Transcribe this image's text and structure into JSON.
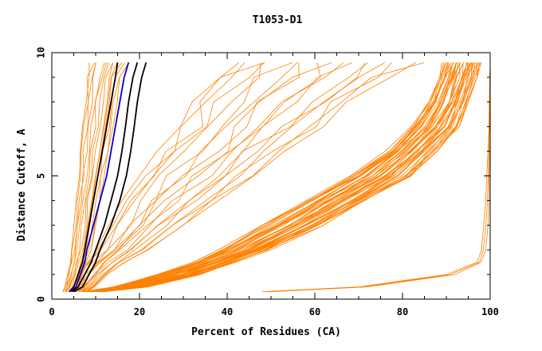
{
  "chart_data": {
    "type": "line",
    "title": "T1053-D1",
    "xlabel": "Percent of Residues (CA)",
    "ylabel": "Distance Cutoff, A",
    "xlim": [
      0,
      100
    ],
    "ylim": [
      0,
      10
    ],
    "x_ticks": [
      0,
      20,
      40,
      60,
      80,
      100
    ],
    "y_ticks": [
      0,
      5,
      10
    ],
    "grid": false,
    "colors": {
      "bulk": "#ff8000",
      "highlight_a": "#000000",
      "highlight_b": "#0000cc",
      "frame": "#000000"
    },
    "y_levels": [
      0.3,
      0.5,
      1,
      1.5,
      2,
      3,
      4,
      5,
      6,
      7,
      8,
      9,
      9.6
    ],
    "bulk_groups": [
      {
        "name": "",
        "count": 14,
        "x_at_levels_min": [
          2.5,
          3,
          3.5,
          4,
          4.5,
          5,
          5.5,
          6,
          6.5,
          7,
          7.5,
          8,
          8.5
        ],
        "x_at_levels_max": [
          5,
          6,
          7,
          8,
          9,
          10,
          11,
          12,
          13,
          14,
          15,
          16,
          18
        ]
      },
      {
        "name": "",
        "count": 18,
        "x_at_levels_min": [
          4,
          5,
          6,
          8,
          10,
          13,
          16,
          20,
          24,
          28,
          32,
          36,
          40
        ],
        "x_at_levels_max": [
          8,
          10,
          13,
          17,
          22,
          30,
          38,
          46,
          54,
          62,
          70,
          78,
          85
        ]
      },
      {
        "name": "",
        "count": 45,
        "x_at_levels_min": [
          7,
          14,
          24,
          32,
          38,
          48,
          58,
          68,
          76,
          82,
          86,
          88,
          89
        ],
        "x_at_levels_max": [
          12,
          22,
          34,
          42,
          50,
          62,
          72,
          82,
          88,
          93,
          95,
          97,
          98
        ]
      },
      {
        "name": "",
        "count": 3,
        "x_at_levels_min": [
          48,
          70,
          90,
          97,
          98,
          98.5,
          99,
          99.2,
          99.5,
          99.7,
          99.8,
          99.9,
          100
        ],
        "x_at_levels_max": [
          50,
          72,
          92,
          98,
          99,
          99.5,
          99.7,
          99.8,
          99.9,
          100,
          100,
          100,
          100
        ]
      }
    ],
    "highlight_series": [
      {
        "name": "",
        "color": "#000000",
        "x": [
          4,
          5,
          6,
          7,
          7.5,
          8.5,
          9.5,
          10.5,
          11.5,
          12.5,
          13.5,
          14.5,
          15
        ],
        "y": [
          0.3,
          0.5,
          1,
          1.5,
          2,
          3,
          4,
          5,
          6,
          7,
          8,
          9,
          9.6
        ]
      },
      {
        "name": "",
        "color": "#000000",
        "x": [
          4.5,
          6,
          7.5,
          9,
          10,
          12,
          13.5,
          15,
          16,
          16.8,
          17.5,
          18.5,
          19.5
        ],
        "y": [
          0.3,
          0.5,
          1,
          1.5,
          2,
          3,
          4,
          5,
          6,
          7,
          8,
          9,
          9.6
        ]
      },
      {
        "name": "",
        "color": "#000000",
        "x": [
          5,
          7,
          8.5,
          10,
          11,
          13.5,
          15.5,
          17,
          18,
          18.8,
          19.5,
          20.5,
          21.5
        ],
        "y": [
          0.3,
          0.5,
          1,
          1.5,
          2,
          3,
          4,
          5,
          6,
          7,
          8,
          9,
          9.6
        ]
      },
      {
        "name": "",
        "color": "#0000cc",
        "x": [
          4,
          5.5,
          6.5,
          7.5,
          8,
          9.5,
          11,
          12.5,
          13.5,
          14.5,
          15.5,
          16.5,
          17.5
        ],
        "y": [
          0.3,
          0.5,
          1,
          1.5,
          2,
          3,
          4,
          5,
          6,
          7,
          8,
          9,
          9.6
        ]
      }
    ]
  }
}
